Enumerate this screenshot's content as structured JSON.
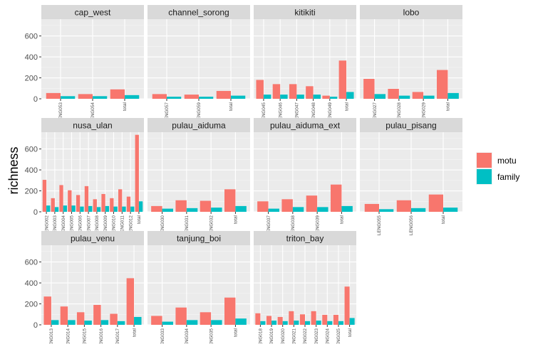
{
  "chart_data": {
    "type": "bar",
    "facet_layout": "wrap",
    "ylabel": "richness",
    "xlabel": "",
    "ylim": [
      0,
      760
    ],
    "yticks": [
      0,
      200,
      400,
      600
    ],
    "grid": true,
    "legend": {
      "position": "right",
      "title": "",
      "entries": [
        {
          "name": "motu",
          "color": "#F8766D"
        },
        {
          "name": "family",
          "color": "#00BFC4"
        }
      ]
    },
    "facets": [
      {
        "name": "cap_west",
        "categories": [
          "LENG053",
          "LENG054",
          "total"
        ],
        "series": [
          {
            "name": "motu",
            "values": [
              55,
              45,
              90
            ]
          },
          {
            "name": "family",
            "values": [
              25,
              25,
              35
            ]
          }
        ]
      },
      {
        "name": "channel_sorong",
        "categories": [
          "LENG057",
          "LENG059",
          "total"
        ],
        "series": [
          {
            "name": "motu",
            "values": [
              45,
              40,
              75
            ]
          },
          {
            "name": "family",
            "values": [
              20,
              20,
              30
            ]
          }
        ]
      },
      {
        "name": "kitikiti",
        "categories": [
          "LENG045",
          "LENG046",
          "LENG047",
          "LENG048",
          "LENG049",
          "total"
        ],
        "series": [
          {
            "name": "motu",
            "values": [
              180,
              140,
              140,
              120,
              30,
              365
            ]
          },
          {
            "name": "family",
            "values": [
              40,
              40,
              40,
              40,
              20,
              65
            ]
          }
        ]
      },
      {
        "name": "lobo",
        "categories": [
          "LENG027",
          "LENG028",
          "LENG029",
          "total"
        ],
        "series": [
          {
            "name": "motu",
            "values": [
              190,
              95,
              65,
              275
            ]
          },
          {
            "name": "family",
            "values": [
              45,
              30,
              30,
              55
            ]
          }
        ]
      },
      {
        "name": "nusa_ulan",
        "categories": [
          "LENG002",
          "LENG003",
          "LENG004",
          "LENG005",
          "LENG006",
          "LENG007",
          "LENG008",
          "LENG009",
          "LENG010",
          "LENG011",
          "LENG012",
          "total"
        ],
        "series": [
          {
            "name": "motu",
            "values": [
              305,
              130,
              255,
              205,
              160,
              245,
              120,
              170,
              130,
              215,
              145,
              735
            ]
          },
          {
            "name": "family",
            "values": [
              60,
              45,
              60,
              60,
              50,
              55,
              45,
              55,
              50,
              50,
              50,
              100
            ]
          }
        ]
      },
      {
        "name": "pulau_aiduma",
        "categories": [
          "LENG030",
          "LENG031",
          "LENG032",
          "total"
        ],
        "series": [
          {
            "name": "motu",
            "values": [
              55,
              110,
              105,
              215
            ]
          },
          {
            "name": "family",
            "values": [
              30,
              35,
              40,
              55
            ]
          }
        ]
      },
      {
        "name": "pulau_aiduma_ext",
        "categories": [
          "LENG037",
          "LENG038",
          "LENG039",
          "total"
        ],
        "series": [
          {
            "name": "motu",
            "values": [
              100,
              120,
              155,
              260
            ]
          },
          {
            "name": "family",
            "values": [
              30,
              45,
              45,
              55
            ]
          }
        ]
      },
      {
        "name": "pulau_pisang",
        "categories": [
          "LENG055",
          "LENG056",
          "total"
        ],
        "series": [
          {
            "name": "motu",
            "values": [
              75,
              110,
              165
            ]
          },
          {
            "name": "family",
            "values": [
              25,
              35,
              40
            ]
          }
        ]
      },
      {
        "name": "pulau_venu",
        "categories": [
          "LENG013",
          "LENG014",
          "LENG015",
          "LENG016",
          "LENG017",
          "total"
        ],
        "series": [
          {
            "name": "motu",
            "values": [
              270,
              175,
              120,
              190,
              105,
              445
            ]
          },
          {
            "name": "family",
            "values": [
              45,
              45,
              40,
              45,
              35,
              75
            ]
          }
        ]
      },
      {
        "name": "tanjung_boi",
        "categories": [
          "LENG033",
          "LENG034",
          "LENG035",
          "total"
        ],
        "series": [
          {
            "name": "motu",
            "values": [
              85,
              165,
              120,
              260
            ]
          },
          {
            "name": "family",
            "values": [
              30,
              45,
              45,
              60
            ]
          }
        ]
      },
      {
        "name": "triton_bay",
        "categories": [
          "LENG018",
          "LENG019",
          "LENG020",
          "LENG021",
          "LENG022",
          "LENG023",
          "LENG024",
          "LENG025",
          "total"
        ],
        "series": [
          {
            "name": "motu",
            "values": [
              110,
              85,
              75,
              130,
              100,
              130,
              95,
              95,
              365
            ]
          },
          {
            "name": "family",
            "values": [
              35,
              40,
              35,
              40,
              35,
              40,
              35,
              35,
              65
            ]
          }
        ]
      }
    ]
  }
}
